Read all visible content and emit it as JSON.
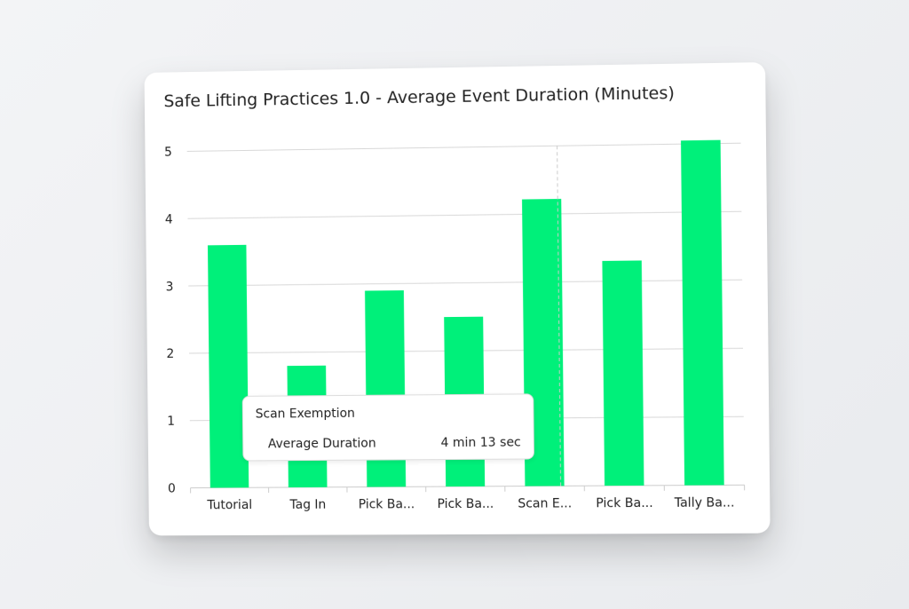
{
  "chart_data": {
    "type": "bar",
    "title": "Safe Lifting Practices 1.0 - Average Event Duration (Minutes)",
    "categories": [
      "Tutorial",
      "Tag In",
      "Pick Ba...",
      "Pick Ba...",
      "Scan E...",
      "Pick Ba...",
      "Tally Ba..."
    ],
    "values": [
      3.6,
      1.8,
      2.9,
      2.5,
      4.22,
      3.3,
      5.05
    ],
    "ylim": [
      0,
      5
    ],
    "yticks": [
      "0",
      "1",
      "2",
      "3",
      "4",
      "5"
    ],
    "grid": true,
    "bar_color": "#00f07a",
    "tooltip": {
      "title": "Scan Exemption",
      "label": "Average Duration",
      "value": "4 min 13 sec",
      "category_index": 4
    }
  }
}
